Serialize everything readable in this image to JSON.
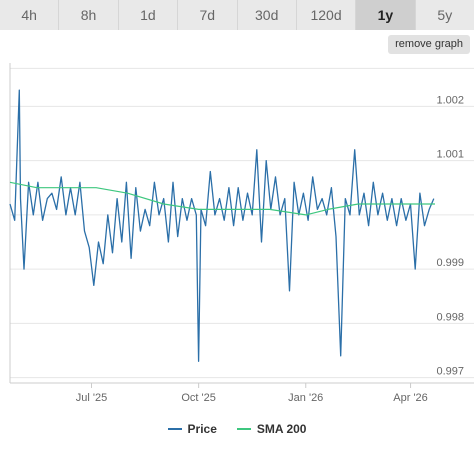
{
  "tabs": [
    {
      "label": "4h",
      "active": false
    },
    {
      "label": "8h",
      "active": false
    },
    {
      "label": "1d",
      "active": false
    },
    {
      "label": "7d",
      "active": false
    },
    {
      "label": "30d",
      "active": false
    },
    {
      "label": "120d",
      "active": false
    },
    {
      "label": "1y",
      "active": true
    },
    {
      "label": "5y",
      "active": false
    }
  ],
  "remove_graph_label": "remove graph",
  "colors": {
    "price": "#2b6fa8",
    "sma": "#3ec77f",
    "grid": "#e6e6e6",
    "axis": "#cccccc"
  },
  "chart_data": {
    "type": "line",
    "title": "",
    "xlabel": "",
    "ylabel": "",
    "x_ticks": [
      {
        "label": "Jul '25",
        "date": "2025-07-01"
      },
      {
        "label": "Oct '25",
        "date": "2025-10-01"
      },
      {
        "label": "Jan '26",
        "date": "2026-01-01"
      },
      {
        "label": "Apr '26",
        "date": "2026-04-01"
      }
    ],
    "xlim": [
      "2025-04-22",
      "2026-04-22"
    ],
    "y_ticks": [
      "0.997",
      "0.998",
      "0.999",
      "1.001",
      "1.002"
    ],
    "ylim": [
      0.9969,
      1.0028
    ],
    "grid": true,
    "legend_position": "bottom",
    "series": [
      {
        "name": "Price",
        "x": [
          "2025-04-22",
          "2025-04-26",
          "2025-04-30",
          "2025-05-01",
          "2025-05-04",
          "2025-05-08",
          "2025-05-12",
          "2025-05-16",
          "2025-05-20",
          "2025-05-24",
          "2025-05-28",
          "2025-06-01",
          "2025-06-05",
          "2025-06-09",
          "2025-06-13",
          "2025-06-17",
          "2025-06-21",
          "2025-06-25",
          "2025-06-29",
          "2025-07-03",
          "2025-07-07",
          "2025-07-11",
          "2025-07-15",
          "2025-07-19",
          "2025-07-23",
          "2025-07-27",
          "2025-07-31",
          "2025-08-04",
          "2025-08-08",
          "2025-08-12",
          "2025-08-16",
          "2025-08-20",
          "2025-08-24",
          "2025-08-28",
          "2025-09-01",
          "2025-09-05",
          "2025-09-09",
          "2025-09-13",
          "2025-09-17",
          "2025-09-21",
          "2025-09-25",
          "2025-09-29",
          "2025-10-01",
          "2025-10-03",
          "2025-10-07",
          "2025-10-11",
          "2025-10-15",
          "2025-10-19",
          "2025-10-23",
          "2025-10-27",
          "2025-10-31",
          "2025-11-04",
          "2025-11-08",
          "2025-11-12",
          "2025-11-16",
          "2025-11-20",
          "2025-11-24",
          "2025-11-28",
          "2025-12-02",
          "2025-12-06",
          "2025-12-10",
          "2025-12-14",
          "2025-12-18",
          "2025-12-22",
          "2025-12-26",
          "2025-12-30",
          "2026-01-03",
          "2026-01-07",
          "2026-01-11",
          "2026-01-15",
          "2026-01-19",
          "2026-01-23",
          "2026-01-27",
          "2026-01-31",
          "2026-02-04",
          "2026-02-08",
          "2026-02-12",
          "2026-02-16",
          "2026-02-20",
          "2026-02-24",
          "2026-02-28",
          "2026-03-04",
          "2026-03-08",
          "2026-03-12",
          "2026-03-16",
          "2026-03-20",
          "2026-03-24",
          "2026-03-28",
          "2026-04-01",
          "2026-04-05",
          "2026-04-09",
          "2026-04-13",
          "2026-04-17",
          "2026-04-21"
        ],
        "values": [
          1.0002,
          0.9999,
          1.0023,
          1.0003,
          0.999,
          1.0006,
          1.0,
          1.0006,
          0.9999,
          1.0003,
          1.0004,
          1.0001,
          1.0007,
          1.0,
          1.0005,
          1.0,
          1.0006,
          0.9997,
          0.9994,
          0.9987,
          0.9995,
          0.9991,
          1.0,
          0.9993,
          1.0003,
          0.9995,
          1.0006,
          0.9992,
          1.0005,
          0.9997,
          1.0001,
          0.9998,
          1.0006,
          1.0,
          1.0003,
          0.9995,
          1.0006,
          0.9996,
          1.0003,
          0.9999,
          1.0003,
          1.0,
          0.9973,
          1.0001,
          0.9998,
          1.0008,
          1.0,
          1.0003,
          0.9999,
          1.0005,
          0.9998,
          1.0005,
          0.9999,
          1.0004,
          1.0,
          1.0012,
          0.9995,
          1.001,
          1.0001,
          1.0007,
          1.0,
          1.0003,
          0.9986,
          1.0006,
          1.0,
          1.0004,
          0.9999,
          1.0007,
          1.0001,
          1.0003,
          1.0,
          1.0005,
          0.9996,
          0.9974,
          1.0003,
          1.0,
          1.0012,
          1.0,
          1.0004,
          0.9998,
          1.0006,
          1.0,
          1.0004,
          0.9999,
          1.0003,
          0.9998,
          1.0003,
          0.9999,
          1.0002,
          0.999,
          1.0004,
          0.9998,
          1.0001,
          1.0003
        ]
      },
      {
        "name": "SMA 200",
        "x": [
          "2025-04-22",
          "2025-05-15",
          "2025-06-10",
          "2025-07-05",
          "2025-08-01",
          "2025-09-01",
          "2025-10-01",
          "2025-11-01",
          "2025-12-01",
          "2026-01-01",
          "2026-01-20",
          "2026-02-15",
          "2026-03-10",
          "2026-04-01",
          "2026-04-22"
        ],
        "values": [
          1.0006,
          1.0005,
          1.0005,
          1.0005,
          1.0004,
          1.0002,
          1.0001,
          1.0001,
          1.0001,
          1.0,
          1.0001,
          1.0002,
          1.0002,
          1.0002,
          1.0002
        ]
      }
    ]
  }
}
